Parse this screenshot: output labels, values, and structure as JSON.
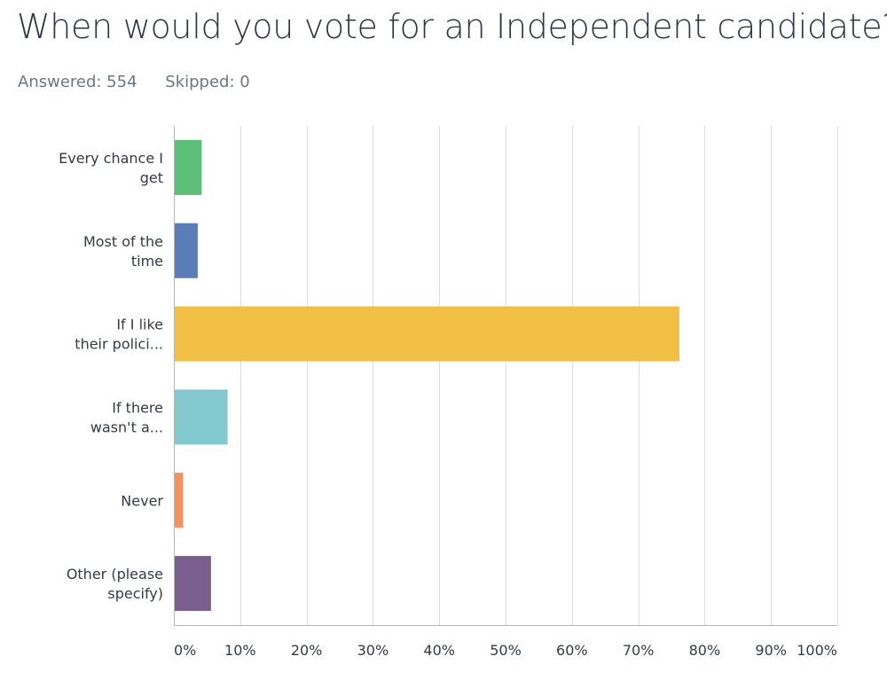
{
  "header": {
    "title": "When would you vote for an Independent candidate?",
    "answered": "Answered: 554",
    "skipped": "Skipped: 0"
  },
  "chart_data": {
    "type": "bar",
    "orientation": "horizontal",
    "title": "When would you vote for an Independent candidate?",
    "categories": [
      [
        "Every chance I",
        "get"
      ],
      [
        "Most of the",
        "time"
      ],
      [
        "If I like",
        "their polici..."
      ],
      [
        "If there",
        "wasn't a..."
      ],
      [
        "Never"
      ],
      [
        "Other (please",
        "specify)"
      ]
    ],
    "values": [
      4.2,
      3.6,
      76.2,
      8.1,
      1.4,
      5.6
    ],
    "colors": [
      "#5bbf78",
      "#5a7db8",
      "#f0bf44",
      "#82c8cd",
      "#f4915c",
      "#7a5f8e"
    ],
    "xlim": [
      0,
      100
    ],
    "ticks": [
      0,
      10,
      20,
      30,
      40,
      50,
      60,
      70,
      80,
      90,
      100
    ],
    "tick_labels": [
      "0%",
      "10%",
      "20%",
      "30%",
      "40%",
      "50%",
      "60%",
      "70%",
      "80%",
      "90%",
      "100%"
    ],
    "grid": true,
    "xlabel": "",
    "ylabel": ""
  }
}
